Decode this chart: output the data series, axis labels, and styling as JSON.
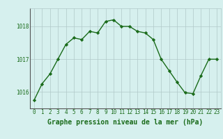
{
  "x": [
    0,
    1,
    2,
    3,
    4,
    5,
    6,
    7,
    8,
    9,
    10,
    11,
    12,
    13,
    14,
    15,
    16,
    17,
    18,
    19,
    20,
    21,
    22,
    23
  ],
  "y": [
    1015.75,
    1016.25,
    1016.55,
    1017.0,
    1017.45,
    1017.65,
    1017.6,
    1017.85,
    1017.8,
    1018.15,
    1018.2,
    1018.0,
    1018.0,
    1017.85,
    1017.8,
    1017.6,
    1017.0,
    1016.65,
    1016.3,
    1015.98,
    1015.95,
    1016.5,
    1017.0,
    1017.0
  ],
  "line_color": "#1a6b1a",
  "marker": "D",
  "marker_size": 2.2,
  "linewidth": 1.0,
  "background_color": "#d6f0ee",
  "grid_color": "#b0c8c8",
  "xlabel": "Graphe pression niveau de la mer (hPa)",
  "xlabel_fontsize": 7,
  "yticks": [
    1016,
    1017,
    1018
  ],
  "ylim": [
    1015.5,
    1018.55
  ],
  "xlim": [
    -0.5,
    23.5
  ],
  "xtick_labels": [
    "0",
    "1",
    "2",
    "3",
    "4",
    "5",
    "6",
    "7",
    "8",
    "9",
    "10",
    "11",
    "12",
    "13",
    "14",
    "15",
    "16",
    "17",
    "18",
    "19",
    "20",
    "21",
    "22",
    "23"
  ],
  "tick_fontsize": 5.5,
  "tick_color": "#1a6b1a",
  "label_fontweight": "bold"
}
